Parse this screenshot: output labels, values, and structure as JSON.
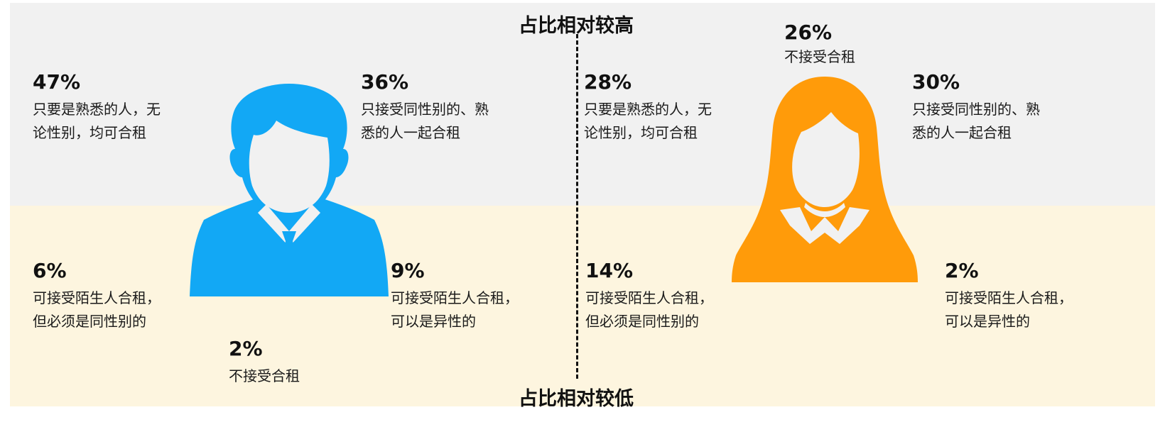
{
  "header_top": "占比相对较高",
  "header_bottom": "占比相对较低",
  "colors": {
    "male": "#12a8f5",
    "female": "#ff9b0a",
    "band_top": "#f1f1f1",
    "band_bottom": "#fdf5df"
  },
  "male": {
    "icon": "male-avatar-icon",
    "stats": [
      {
        "pct": "47%",
        "line1": "只要是熟悉的人，无",
        "line2": "论性别，均可合租"
      },
      {
        "pct": "36%",
        "line1": "只接受同性别的、熟",
        "line2": "悉的人一起合租"
      },
      {
        "pct": "6%",
        "line1": "可接受陌生人合租，",
        "line2": "但必须是同性别的"
      },
      {
        "pct": "9%",
        "line1": "可接受陌生人合租，",
        "line2": "可以是异性的"
      },
      {
        "pct": "2%",
        "line1": "不接受合租",
        "line2": ""
      }
    ]
  },
  "female": {
    "icon": "female-avatar-icon",
    "stats": [
      {
        "pct": "28%",
        "line1": "只要是熟悉的人，无",
        "line2": "论性别，均可合租"
      },
      {
        "pct": "30%",
        "line1": "只接受同性别的、熟",
        "line2": "悉的人一起合租"
      },
      {
        "pct": "14%",
        "line1": "可接受陌生人合租，",
        "line2": "但必须是同性别的"
      },
      {
        "pct": "2%",
        "line1": "可接受陌生人合租，",
        "line2": "可以是异性的"
      },
      {
        "pct": "26%",
        "line1": "不接受合租",
        "line2": ""
      }
    ]
  }
}
